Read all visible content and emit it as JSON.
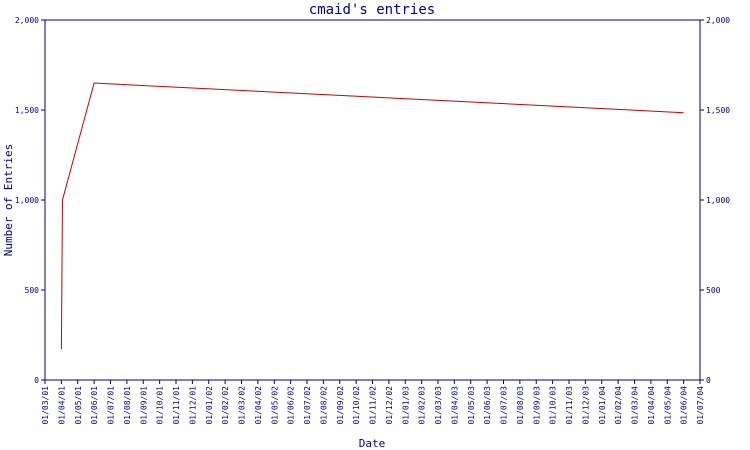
{
  "chart_data": {
    "type": "line",
    "title": "cmaid's entries",
    "xlabel": "Date",
    "ylabel": "Number of Entries",
    "ylim": [
      0,
      2000
    ],
    "y_ticks": [
      {
        "value": 0,
        "label": "0"
      },
      {
        "value": 500,
        "label": "500"
      },
      {
        "value": 1000,
        "label": "1,000"
      },
      {
        "value": 1500,
        "label": "1,500"
      },
      {
        "value": 2000,
        "label": "2,000"
      }
    ],
    "categories": [
      "01/03/01",
      "01/04/01",
      "01/05/01",
      "01/06/01",
      "01/07/01",
      "01/08/01",
      "01/09/01",
      "01/10/01",
      "01/11/01",
      "01/12/01",
      "01/01/02",
      "01/02/02",
      "01/03/02",
      "01/04/02",
      "01/05/02",
      "01/06/02",
      "01/07/02",
      "01/08/02",
      "01/09/02",
      "01/10/02",
      "01/11/02",
      "01/12/02",
      "01/01/03",
      "01/02/03",
      "01/03/03",
      "01/04/03",
      "01/05/03",
      "01/06/03",
      "01/07/03",
      "01/08/03",
      "01/09/03",
      "01/10/03",
      "01/11/03",
      "01/12/03",
      "01/01/04",
      "01/02/04",
      "01/03/04",
      "01/04/04",
      "01/05/04",
      "01/06/04",
      "01/07/04"
    ],
    "series": [
      {
        "points": [
          {
            "x": "01/04/01",
            "y": 170
          },
          {
            "x": "03/04/01",
            "y": 1000
          },
          {
            "x": "01/06/01",
            "y": 1650
          },
          {
            "x": "01/07/01",
            "y": 1645
          },
          {
            "x": "01/06/04",
            "y": 1485
          }
        ]
      }
    ],
    "grid": false,
    "secondary_y_axis": true
  },
  "colors": {
    "axis": "#00008b",
    "line": "#cc0000",
    "text": "#00008b"
  }
}
